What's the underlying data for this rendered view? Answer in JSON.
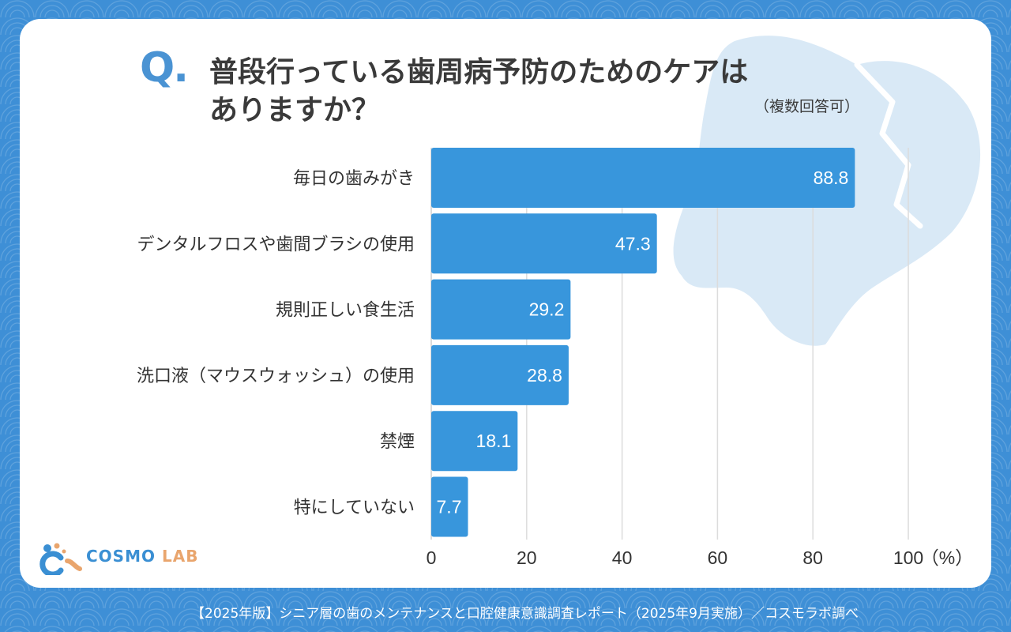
{
  "title": {
    "q_mark": "Q.",
    "line1": "普段行っている歯周病予防のためのケアは",
    "line2": "ありますか？",
    "note": "（複数回答可）"
  },
  "chart_data": {
    "type": "bar",
    "orientation": "horizontal",
    "categories": [
      "毎日の歯みがき",
      "デンタルフロスや歯間ブラシの使用",
      "規則正しい食生活",
      "洗口液（マウスウォッシュ）の使用",
      "禁煙",
      "特にしていない"
    ],
    "values": [
      88.8,
      47.3,
      29.2,
      28.8,
      18.1,
      7.7
    ],
    "value_labels": [
      "88.8",
      "47.3",
      "29.2",
      "28.8",
      "18.1",
      "7.7"
    ],
    "xlim": [
      0,
      100
    ],
    "xticks": [
      "0",
      "20",
      "40",
      "60",
      "80",
      "100"
    ],
    "xunit": "（%）",
    "grid": true,
    "bar_color": "#3896dc"
  },
  "logo": {
    "word1": "COSMO",
    "word2": "LAB"
  },
  "footer": "【2025年版】シニア層の歯のメンテナンスと口腔健康意識調査レポート（2025年9月実施）／コスモラボ調べ",
  "colors": {
    "background": "#3e8fd6",
    "accent": "#4a93d3",
    "tooth": "#d9e9f6",
    "logo_orange": "#e9a56d"
  }
}
